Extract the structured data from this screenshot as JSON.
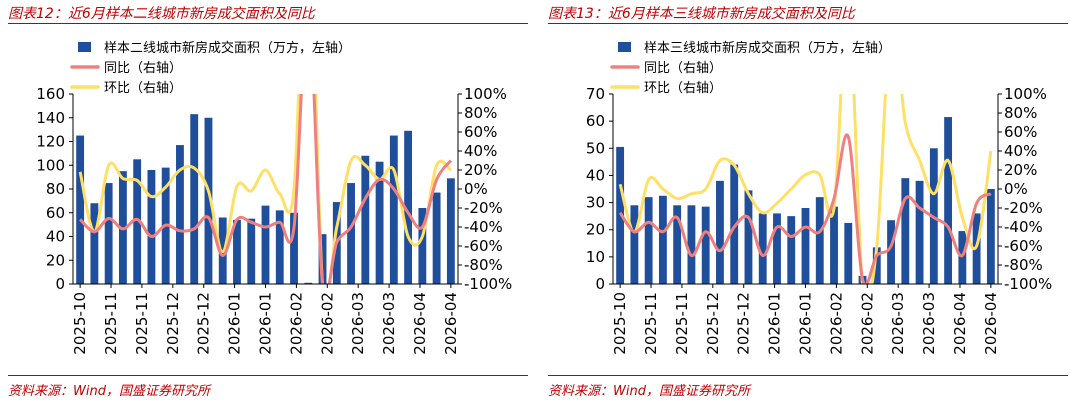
{
  "panels": [
    {
      "title": "图表12：近6月样本二线城市新房成交面积及同比",
      "source": "资料来源：Wind，国盛证券研究所",
      "chart_data": {
        "type": "bar",
        "x_tick_labels": [
          "2025-10",
          "2025-11",
          "2025-11",
          "2025-12",
          "2025-12",
          "2026-01",
          "2026-01",
          "2026-02",
          "2026-02",
          "2026-03",
          "2026-03",
          "2026-04",
          "2026-04"
        ],
        "ylim_left": [
          0,
          160
        ],
        "yticks_left": [
          0,
          20,
          40,
          60,
          80,
          100,
          120,
          140,
          160
        ],
        "ylim_right": [
          -100,
          100
        ],
        "yticks_right": [
          "-100%",
          "-80%",
          "-60%",
          "-40%",
          "-20%",
          "0%",
          "20%",
          "40%",
          "60%",
          "80%",
          "100%"
        ],
        "yticks_right_values": [
          -100,
          -80,
          -60,
          -40,
          -20,
          0,
          20,
          40,
          60,
          80,
          100
        ],
        "legend_placement": "top",
        "grid": false,
        "series": [
          {
            "name": "样本二线城市新房成交面积（万方，左轴）",
            "type": "bar",
            "axis": "left",
            "color": "#1f4e9a",
            "values": [
              125,
              68,
              85,
              95,
              105,
              96,
              98,
              117,
              143,
              140,
              56,
              54,
              55,
              66,
              62,
              60,
              1,
              42,
              69,
              85,
              108,
              103,
              125,
              129,
              64,
              77,
              89
            ]
          },
          {
            "name": "同比（右轴）",
            "type": "line",
            "axis": "right",
            "color": "#f08080",
            "values": [
              -32,
              -45,
              -31,
              -42,
              -32,
              -50,
              -38,
              -44,
              -42,
              -30,
              -70,
              -32,
              -35,
              -40,
              -35,
              -40,
              200,
              -100,
              -56,
              -40,
              -10,
              10,
              0,
              -25,
              -40,
              10,
              30
            ]
          },
          {
            "name": "环比（右轴）",
            "type": "line",
            "axis": "right",
            "color": "#ffe066",
            "values": [
              18,
              -45,
              25,
              11,
              9,
              -8,
              2,
              20,
              22,
              -2,
              -66,
              3,
              -2,
              20,
              -5,
              0,
              300,
              -100,
              -40,
              30,
              25,
              10,
              20,
              -50,
              -50,
              25,
              20
            ]
          }
        ]
      }
    },
    {
      "title": "图表13：近6月样本三线城市新房成交面积及同比",
      "source": "资料来源：Wind，国盛证券研究所",
      "chart_data": {
        "type": "bar",
        "x_tick_labels": [
          "2025-10",
          "2025-11",
          "2025-11",
          "2025-12",
          "2025-12",
          "2026-01",
          "2026-01",
          "2026-02",
          "2026-02",
          "2026-03",
          "2026-03",
          "2026-04",
          "2026-04"
        ],
        "ylim_left": [
          0,
          70
        ],
        "yticks_left": [
          0,
          10,
          20,
          30,
          40,
          50,
          60,
          70
        ],
        "ylim_right": [
          -100,
          100
        ],
        "yticks_right": [
          "-100%",
          "-80%",
          "-60%",
          "-40%",
          "-20%",
          "0%",
          "20%",
          "40%",
          "60%",
          "80%",
          "100%"
        ],
        "yticks_right_values": [
          -100,
          -80,
          -60,
          -40,
          -20,
          0,
          20,
          40,
          60,
          80,
          100
        ],
        "legend_placement": "top",
        "grid": false,
        "series": [
          {
            "name": "样本三线城市新房成交面积（万方，左轴）",
            "type": "bar",
            "axis": "left",
            "color": "#1f4e9a",
            "values": [
              50.5,
              29,
              32,
              32.5,
              29,
              29,
              28.5,
              38,
              44,
              34.5,
              26,
              26,
              25,
              28,
              32,
              28.5,
              22.5,
              3,
              13.5,
              23.5,
              39,
              38,
              50,
              61.5,
              19.5,
              26,
              35
            ]
          },
          {
            "name": "同比（右轴）",
            "type": "line",
            "axis": "right",
            "color": "#f08080",
            "values": [
              -25,
              -45,
              -35,
              -45,
              -30,
              -70,
              -45,
              -65,
              -40,
              -30,
              -70,
              -40,
              -50,
              -40,
              -45,
              -10,
              55,
              -95,
              -70,
              -60,
              -10,
              -20,
              -30,
              -40,
              -70,
              -15,
              -5
            ]
          },
          {
            "name": "环比（右轴）",
            "type": "line",
            "axis": "right",
            "color": "#ffe066",
            "values": [
              5,
              -45,
              10,
              0,
              -10,
              -5,
              0,
              30,
              25,
              -5,
              -25,
              -15,
              0,
              15,
              15,
              -20,
              200,
              -100,
              -60,
              180,
              70,
              30,
              -5,
              30,
              -30,
              -60,
              40
            ]
          }
        ]
      }
    }
  ]
}
